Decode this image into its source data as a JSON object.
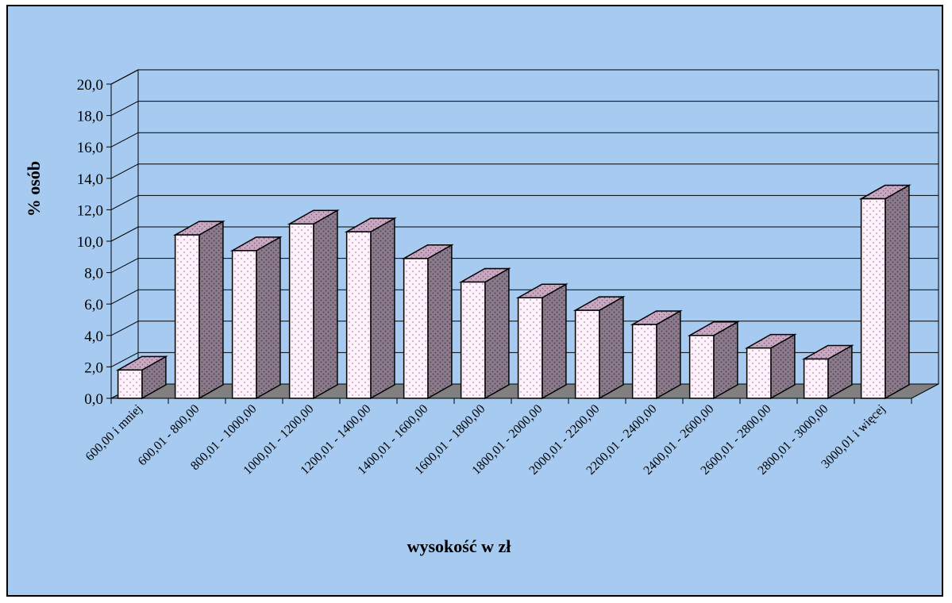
{
  "chart_data": {
    "type": "bar",
    "title": "",
    "xlabel": "wysokość w zł",
    "ylabel": "% osób",
    "ylim": [
      0,
      20
    ],
    "yticks": [
      "0,0",
      "2,0",
      "4,0",
      "6,0",
      "8,0",
      "10,0",
      "12,0",
      "14,0",
      "16,0",
      "18,0",
      "20,0"
    ],
    "categories": [
      "600,00 i mniej",
      "600,01 - 800,00",
      "800,01 - 1000,00",
      "1000,01 - 1200,00",
      "1200,01 - 1400,00",
      "1400,01 - 1600,00",
      "1600,01 - 1800,00",
      "1800,01 - 2000,00",
      "2000,01 - 2200,00",
      "2200,01 - 2400,00",
      "2400,01 - 2600,00",
      "2600,01 - 2800,00",
      "2800,01 - 3000,00",
      "3000,01 i więcej"
    ],
    "values": [
      1.8,
      10.4,
      9.4,
      11.1,
      10.6,
      8.9,
      7.4,
      6.4,
      5.6,
      4.7,
      4.0,
      3.2,
      2.5,
      12.7
    ],
    "grid": true,
    "legend": "none",
    "three_d": true,
    "colors": {
      "background": "#a6caf0",
      "wall": "#a6caf0",
      "floor": "#808080",
      "bar_front": "#fdf2fa",
      "bar_dots": "#c080c0",
      "bar_side": "#8a7a8c",
      "bar_top": "#c9a8c2",
      "side_dots": "#4a3e4c"
    }
  }
}
